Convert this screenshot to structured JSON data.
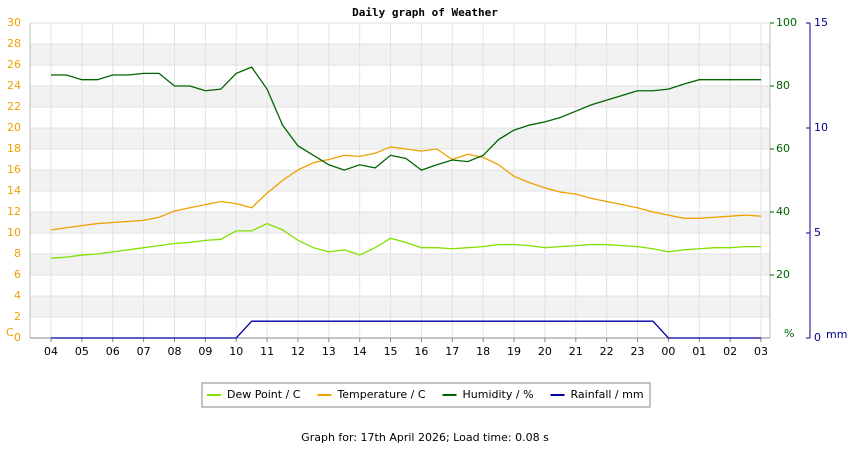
{
  "chart_data": {
    "type": "line",
    "title": "Daily graph of Weather",
    "footer": "Graph for: 17th April 2026; Load time: 0.08 s",
    "ylabel": "C",
    "y2label": "%",
    "y3label": "mm",
    "categories": [
      "04",
      null,
      "05",
      null,
      "06",
      null,
      "07",
      null,
      "08",
      null,
      "09",
      null,
      "10",
      null,
      "11",
      null,
      "12",
      null,
      "13",
      null,
      "14",
      null,
      "15",
      null,
      "16",
      null,
      "17",
      null,
      "18",
      null,
      "19",
      null,
      "20",
      null,
      "21",
      null,
      "22",
      null,
      "23",
      null,
      "00",
      null,
      "01",
      null,
      "02",
      null,
      "03"
    ],
    "ylim": [
      0,
      30
    ],
    "yticks": [
      0,
      2,
      4,
      6,
      8,
      10,
      12,
      14,
      16,
      18,
      20,
      22,
      24,
      26,
      28,
      30
    ],
    "y2lim": [
      0,
      100
    ],
    "y2ticks": [
      20,
      40,
      60,
      80,
      100
    ],
    "y3lim": [
      0,
      15
    ],
    "y3ticks": [
      0,
      5,
      10,
      15
    ],
    "grid": true,
    "series": [
      {
        "name": "Dew Point / C",
        "color": "#80e000",
        "values": [
          7.6,
          7.7,
          7.9,
          8.0,
          8.2,
          8.4,
          8.6,
          8.8,
          9.0,
          9.1,
          9.3,
          9.4,
          10.2,
          10.2,
          10.9,
          10.3,
          9.3,
          8.6,
          8.2,
          8.4,
          7.9,
          8.6,
          9.5,
          9.1,
          8.6,
          8.6,
          8.5,
          8.6,
          8.7,
          8.9,
          8.9,
          8.8,
          8.6,
          8.7,
          8.8,
          8.9,
          8.9,
          8.8,
          8.7,
          8.5,
          8.2,
          8.4,
          8.5,
          8.6,
          8.6,
          8.7,
          8.7
        ]
      },
      {
        "name": "Temperature / C",
        "color": "#f0a000",
        "values": [
          10.3,
          10.5,
          10.7,
          10.9,
          11.0,
          11.1,
          11.2,
          11.5,
          12.1,
          12.4,
          12.7,
          13.0,
          12.8,
          12.4,
          13.8,
          15.0,
          16.0,
          16.7,
          17.0,
          17.4,
          17.3,
          17.6,
          18.2,
          18.0,
          17.8,
          18.0,
          17.0,
          17.5,
          17.2,
          16.5,
          15.4,
          14.8,
          14.3,
          13.9,
          13.7,
          13.3,
          13.0,
          12.7,
          12.4,
          12.0,
          11.7,
          11.4,
          11.4,
          11.5,
          11.6,
          11.7,
          11.6
        ]
      },
      {
        "name": "Humidity / %",
        "color": "#006400",
        "axis": "y2",
        "values": [
          83.5,
          83.5,
          82,
          82,
          83.5,
          83.5,
          84,
          84,
          80,
          80,
          78.5,
          79,
          84,
          86,
          79,
          67.6,
          61,
          58,
          55,
          53.3,
          55,
          54,
          58,
          57,
          53.3,
          55,
          56.5,
          56,
          58,
          63,
          66,
          67.6,
          68.6,
          70,
          72,
          74,
          75.5,
          77,
          78.5,
          78.5,
          79,
          80.6,
          82,
          82,
          82,
          82,
          82
        ]
      },
      {
        "name": "Rainfall / mm",
        "color": "#0000a0",
        "axis": "y3",
        "values": [
          0,
          0,
          0,
          0,
          0,
          0,
          0,
          0,
          0,
          0,
          0,
          0,
          0,
          0.8,
          0.8,
          0.8,
          0.8,
          0.8,
          0.8,
          0.8,
          0.8,
          0.8,
          0.8,
          0.8,
          0.8,
          0.8,
          0.8,
          0.8,
          0.8,
          0.8,
          0.8,
          0.8,
          0.8,
          0.8,
          0.8,
          0.8,
          0.8,
          0.8,
          0.8,
          0.8,
          0,
          0,
          0,
          0,
          0,
          0,
          0
        ]
      }
    ]
  }
}
